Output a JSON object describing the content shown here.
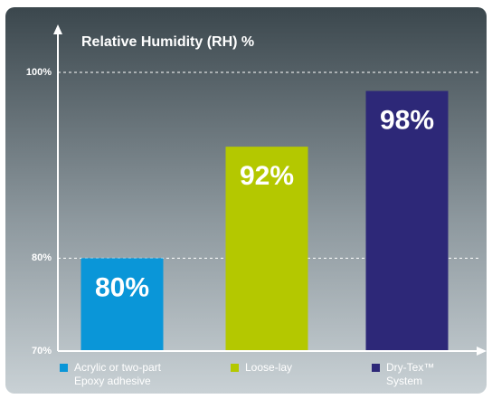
{
  "chart_data": {
    "type": "bar",
    "title": "Relative Humidity (RH) %",
    "categories": [
      "Acrylic or two-part Epoxy adhesive",
      "Loose-lay",
      "Dry-Tex™ System"
    ],
    "values": [
      80,
      92,
      98
    ],
    "value_labels": [
      "80%",
      "92%",
      "98%"
    ],
    "colors": [
      "#0a96d8",
      "#b4c800",
      "#2d2878"
    ],
    "ylim": [
      70,
      100
    ],
    "yticks": [
      {
        "value": 70,
        "label": "70%"
      },
      {
        "value": 80,
        "label": "80%"
      },
      {
        "value": 100,
        "label": "100%"
      }
    ],
    "grid": true
  }
}
